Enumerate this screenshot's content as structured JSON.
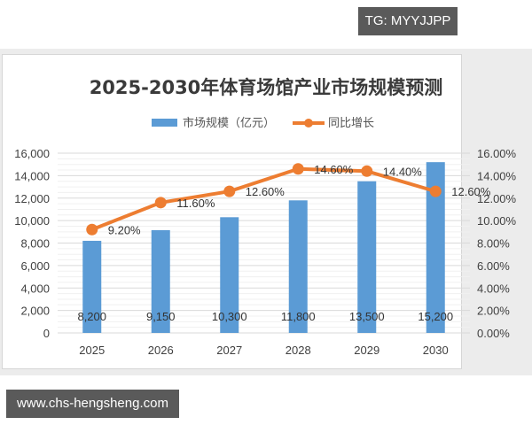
{
  "watermarks": {
    "top_tag": "TG: MYYJJPP",
    "bottom_tag": "www.chs-hengsheng.com"
  },
  "colors": {
    "bar": "#5b9bd5",
    "line": "#ed7d31",
    "grid": "#d9d9d9",
    "text": "#404040",
    "title": "#3a3a3a"
  },
  "chart_data": {
    "type": "bar+line",
    "title": "2025-2030年体育场馆产业市场规模预测",
    "categories": [
      "2025",
      "2026",
      "2027",
      "2028",
      "2029",
      "2030"
    ],
    "series": [
      {
        "name": "市场规模（亿元）",
        "type": "bar",
        "axis": "left",
        "values": [
          8200,
          9150,
          10300,
          11800,
          13500,
          15200
        ],
        "labels": [
          "8,200",
          "9,150",
          "10,300",
          "11,800",
          "13,500",
          "15,200"
        ]
      },
      {
        "name": "同比增长",
        "type": "line",
        "axis": "right",
        "values": [
          9.2,
          11.6,
          12.6,
          14.6,
          14.4,
          12.6
        ],
        "labels": [
          "9.20%",
          "11.60%",
          "12.60%",
          "14.60%",
          "14.40%",
          "12.60%"
        ]
      }
    ],
    "left_axis": {
      "ylim": [
        0,
        16000
      ],
      "ticks": [
        "0",
        "2,000",
        "4,000",
        "6,000",
        "8,000",
        "10,000",
        "12,000",
        "14,000",
        "16,000"
      ]
    },
    "right_axis": {
      "ylim": [
        0,
        16
      ],
      "ticks": [
        "0.00%",
        "2.00%",
        "4.00%",
        "6.00%",
        "8.00%",
        "10.00%",
        "12.00%",
        "14.00%",
        "16.00%"
      ]
    },
    "legend": {
      "position": "top",
      "items": [
        "市场规模（亿元）",
        "同比增长"
      ]
    },
    "grid": true,
    "xlabel": "",
    "ylabel": ""
  }
}
